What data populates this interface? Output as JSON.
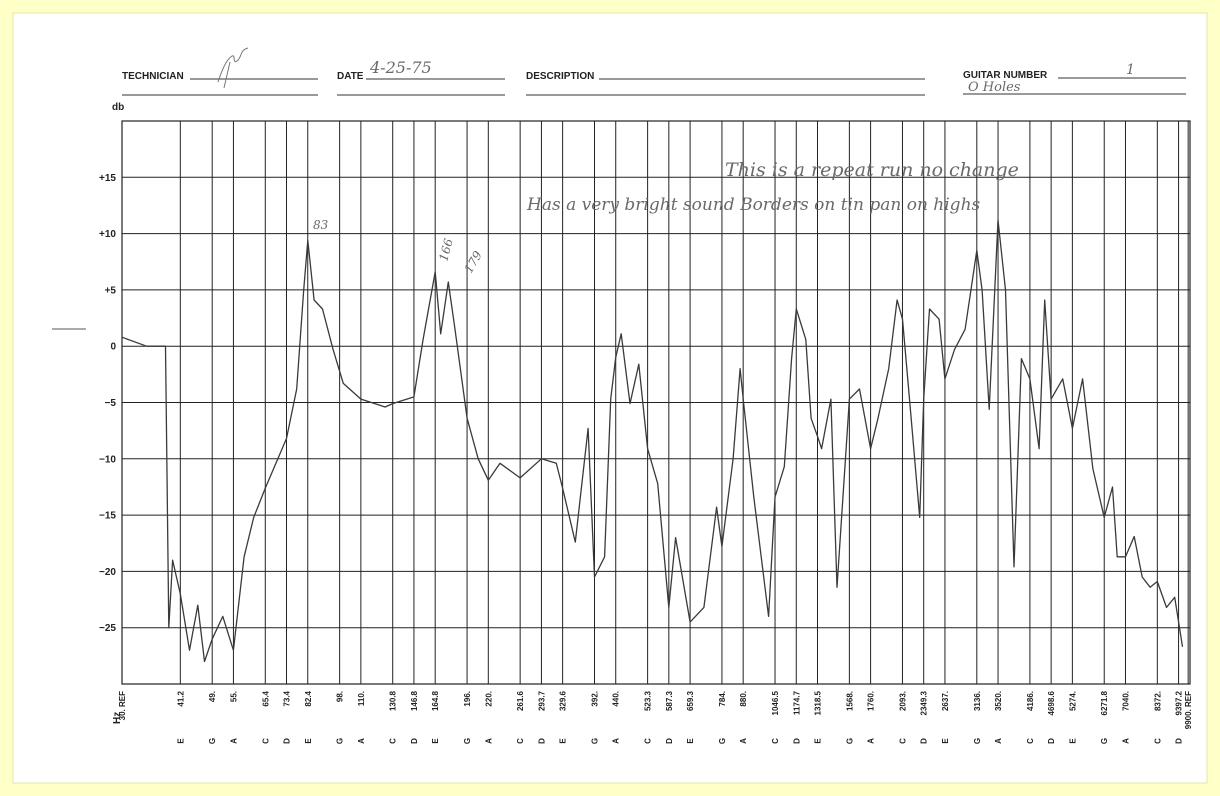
{
  "form": {
    "technician_label": "TECHNICIAN",
    "date_label": "DATE",
    "date": "4-25-75",
    "description_label": "DESCRIPTION",
    "guitar_number_label": "GUITAR NUMBER",
    "guitar_number": "1",
    "guitar_note": "O Holes"
  },
  "chart_data": {
    "type": "line",
    "ylabel": "db",
    "xlabel": "Hz",
    "xscale": "log",
    "grid": true,
    "color": "#3a3a3a",
    "annotations": [
      "This is a repeat run no change",
      "Has a very bright sound Borders on tin pan on highs"
    ],
    "peak_labels": [
      "83",
      "166",
      "179"
    ],
    "xlim": [
      30,
      10000
    ],
    "ylim": [
      -30,
      20
    ],
    "yticks": [
      {
        "value": 15,
        "label": "+15"
      },
      {
        "value": 10,
        "label": "+10"
      },
      {
        "value": 5,
        "label": "+5"
      },
      0,
      {
        "value": -5,
        "label": "−5"
      },
      {
        "value": -10,
        "label": "−10"
      },
      {
        "value": -15,
        "label": "−15"
      },
      {
        "value": -20,
        "label": "−20"
      },
      {
        "value": -25,
        "label": "−25"
      }
    ],
    "xticks": [
      {
        "value": 30,
        "label": "30. REF"
      },
      41.2,
      {
        "value": 49,
        "label": "49."
      },
      {
        "value": 55,
        "label": "55."
      },
      65.4,
      73.4,
      82.4,
      {
        "value": 98,
        "label": "98."
      },
      {
        "value": 110,
        "label": "110."
      },
      130.8,
      146.8,
      164.8,
      {
        "value": 196,
        "label": "196."
      },
      {
        "value": 220,
        "label": "220."
      },
      261.6,
      293.7,
      329.6,
      {
        "value": 392,
        "label": "392."
      },
      {
        "value": 440,
        "label": "440."
      },
      523.3,
      587.3,
      659.3,
      {
        "value": 784,
        "label": "784."
      },
      {
        "value": 880,
        "label": "880."
      },
      1046.5,
      1174.7,
      1318.5,
      {
        "value": 1568,
        "label": "1568."
      },
      {
        "value": 1760,
        "label": "1760."
      },
      {
        "value": 2093,
        "label": "2093."
      },
      2349.3,
      {
        "value": 2637,
        "label": "2637."
      },
      {
        "value": 3136,
        "label": "3136."
      },
      {
        "value": 3520,
        "label": "3520."
      },
      {
        "value": 4186,
        "label": "4186."
      },
      4698.6,
      {
        "value": 5274,
        "label": "5274."
      },
      6271.8,
      {
        "value": 7040,
        "label": "7040."
      },
      {
        "value": 8372,
        "label": "8372."
      },
      {
        "value": 9900,
        "label": "9900. REF"
      },
      9397.2
    ],
    "x_notes": [
      null,
      "E",
      "G",
      "A",
      "C",
      "D",
      "E",
      "G",
      "A",
      "C",
      "D",
      "E",
      "G",
      "A",
      "C",
      "D",
      "E",
      "G",
      "A",
      "C",
      "D",
      "E",
      "G",
      "A",
      "C",
      "D",
      "E",
      "G",
      "A",
      "C",
      "D",
      "E",
      "G",
      "A",
      "C",
      "D",
      "E",
      "G",
      "A",
      "C",
      null,
      "D"
    ],
    "x": [
      30,
      34.3,
      38.0,
      38.7,
      39.5,
      41.2,
      43.3,
      45.3,
      47.0,
      49,
      51.9,
      55,
      58.3,
      61.4,
      65.4,
      73.4,
      77.6,
      80.6,
      82.4,
      85.3,
      89.3,
      94.6,
      100,
      110,
      125.5,
      130.8,
      146.8,
      154.3,
      164.8,
      169.8,
      177,
      183.5,
      196,
      208.2,
      220,
      234.5,
      261.6,
      293.7,
      318.4,
      329.6,
      353.2,
      378.6,
      392,
      414.2,
      428,
      440,
      453.3,
      475.5,
      498.7,
      523.3,
      552.7,
      587.3,
      609.3,
      659.3,
      710.7,
      761.6,
      784,
      833,
      865.6,
      880,
      932.3,
      970.8,
      1010.8,
      1046.5,
      1100.4,
      1145.5,
      1174.7,
      1237.3,
      1273.6,
      1318.5,
      1348.3,
      1417.8,
      1466.2,
      1568,
      1656.8,
      1760,
      1832.5,
      1941.6,
      2033.2,
      2093,
      2175,
      2298.3,
      2349.3,
      2424.5,
      2555,
      2637,
      2777.8,
      2942.6,
      3136,
      3228,
      3354.6,
      3520,
      3665,
      3838.6,
      3996.3,
      4186,
      4401.6,
      4536.3,
      4698.6,
      5004,
      5274,
      5577,
      5896,
      6271.8,
      6562,
      6729,
      7040,
      7383.5,
      7710,
      8051,
      8372,
      8800,
      9200,
      9600
    ],
    "values": [
      0.8,
      0,
      0,
      -25,
      -19,
      -22,
      -27,
      -23,
      -28,
      -26,
      -24,
      -27,
      -18.7,
      -15.2,
      -12.6,
      -8.2,
      -3.8,
      5,
      9.4,
      4.1,
      3.3,
      -0.3,
      -3.3,
      -4.7,
      -5.4,
      -5.1,
      -4.5,
      0.6,
      6.6,
      1.1,
      5.7,
      1.5,
      -6.4,
      -10,
      -11.9,
      -10.4,
      -11.7,
      -10,
      -10.4,
      -12.6,
      -17.4,
      -7.3,
      -20.5,
      -18.7,
      -4.7,
      -1,
      1.1,
      -5.1,
      -1.6,
      -9.1,
      -12.2,
      -23.2,
      -17,
      -24.5,
      -23.2,
      -14.3,
      -17.8,
      -10,
      -2,
      -4.7,
      -13.4,
      -18.7,
      -24,
      -13.4,
      -10.7,
      -1.1,
      3.3,
      0.6,
      -6.4,
      -8,
      -9.1,
      -4.7,
      -21.4,
      -4.7,
      -3.8,
      -9.1,
      -6.4,
      -2,
      4.1,
      2.4,
      -4.7,
      -15.2,
      -4.7,
      3.3,
      2.4,
      -2.9,
      -0.3,
      1.5,
      8.5,
      5,
      -5.6,
      11.2,
      5,
      -19.6,
      -1.1,
      -2.9,
      -9.1,
      4.1,
      -4.7,
      -2.9,
      -7.3,
      -2.9,
      -10.9,
      -15.2,
      -12.5,
      -18.7,
      -18.7,
      -16.9,
      -20.5,
      -21.4,
      -20.9,
      -23.2,
      -22.3,
      -26.7
    ]
  }
}
